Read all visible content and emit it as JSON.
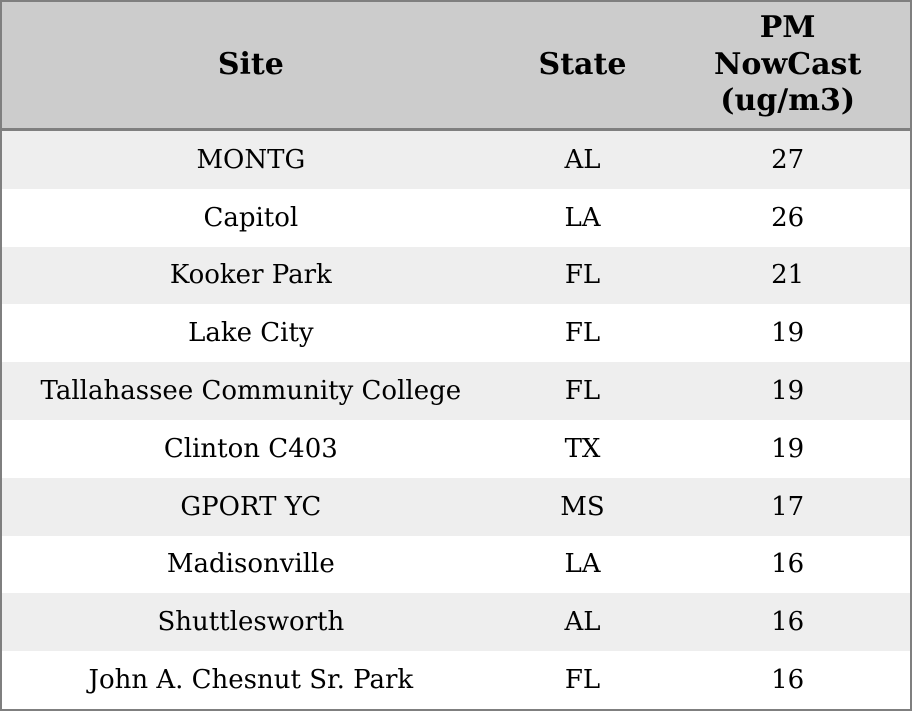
{
  "colors": {
    "header_bg": "#cccccc",
    "stripe_bg": "#eeeeee",
    "plain_bg": "#ffffff",
    "border": "#7f7f7f",
    "text": "#000000"
  },
  "table": {
    "columns": [
      {
        "label": "Site"
      },
      {
        "label": "State"
      },
      {
        "label": "PM NowCast (ug/m3)",
        "lines": [
          "PM",
          "NowCast",
          "(ug/m3)"
        ]
      }
    ],
    "rows": [
      {
        "site": "MONTG",
        "state": "AL",
        "pm": "27"
      },
      {
        "site": "Capitol",
        "state": "LA",
        "pm": "26"
      },
      {
        "site": "Kooker Park",
        "state": "FL",
        "pm": "21"
      },
      {
        "site": "Lake City",
        "state": "FL",
        "pm": "19"
      },
      {
        "site": "Tallahassee Community College",
        "state": "FL",
        "pm": "19"
      },
      {
        "site": "Clinton C403",
        "state": "TX",
        "pm": "19"
      },
      {
        "site": "GPORT YC",
        "state": "MS",
        "pm": "17"
      },
      {
        "site": "Madisonville",
        "state": "LA",
        "pm": "16"
      },
      {
        "site": "Shuttlesworth",
        "state": "AL",
        "pm": "16"
      },
      {
        "site": "John A. Chesnut Sr. Park",
        "state": "FL",
        "pm": "16"
      }
    ]
  },
  "chart_data": {
    "type": "table",
    "title": "",
    "columns": [
      "Site",
      "State",
      "PM NowCast (ug/m3)"
    ],
    "rows": [
      [
        "MONTG",
        "AL",
        27
      ],
      [
        "Capitol",
        "LA",
        26
      ],
      [
        "Kooker Park",
        "FL",
        21
      ],
      [
        "Lake City",
        "FL",
        19
      ],
      [
        "Tallahassee Community College",
        "FL",
        19
      ],
      [
        "Clinton C403",
        "TX",
        19
      ],
      [
        "GPORT YC",
        "MS",
        17
      ],
      [
        "Madisonville",
        "LA",
        16
      ],
      [
        "Shuttlesworth",
        "AL",
        16
      ],
      [
        "John A. Chesnut Sr. Park",
        "FL",
        16
      ]
    ]
  }
}
